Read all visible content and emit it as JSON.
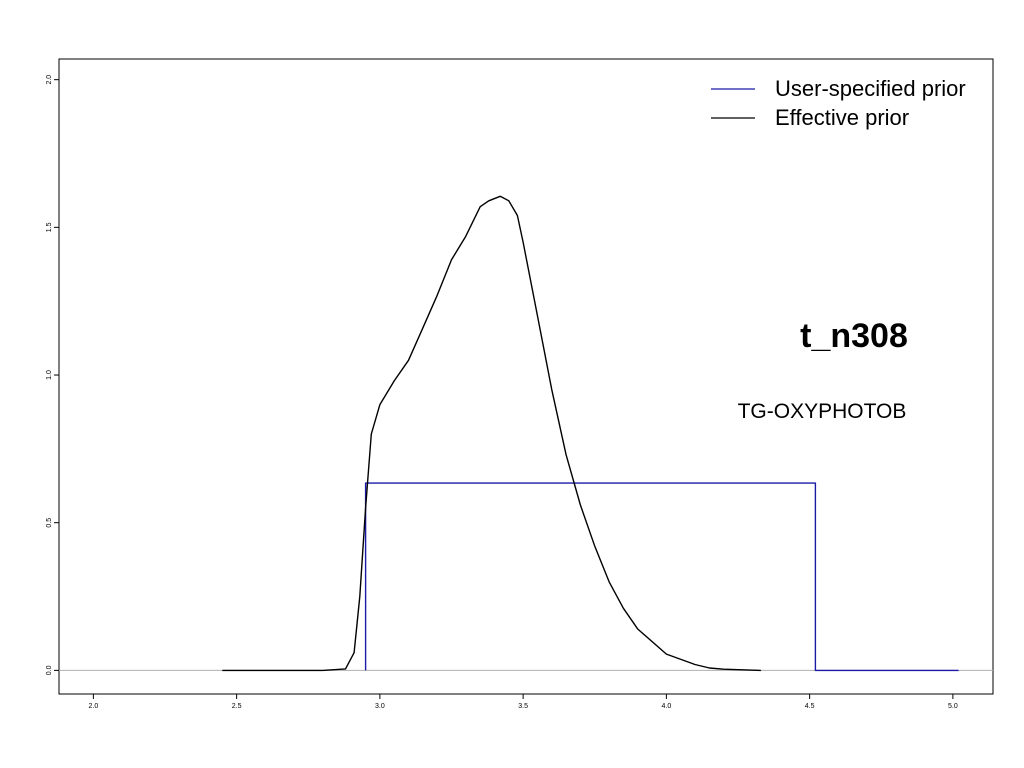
{
  "chart_data": {
    "type": "line",
    "title": "t_n308",
    "subtitle": "TG-OXYPHOTOB",
    "xlabel": "",
    "ylabel": "",
    "xlim": [
      1.88,
      5.14
    ],
    "ylim": [
      -0.08,
      2.07
    ],
    "xticks": [
      2.0,
      2.5,
      3.0,
      3.5,
      4.0,
      4.5,
      5.0
    ],
    "xtick_labels": [
      "2.0",
      "2.5",
      "3.0",
      "3.5",
      "4.0",
      "4.5",
      "5.0"
    ],
    "yticks": [
      0.0,
      0.5,
      1.0,
      1.5,
      2.0
    ],
    "ytick_labels": [
      "0.0",
      "0.5",
      "1.0",
      "1.5",
      "2.0"
    ],
    "grid": false,
    "legend_position": "top-right",
    "baseline": {
      "y": 0.0,
      "color": "#b0b0b0"
    },
    "series": [
      {
        "name": "User-specified prior",
        "color": "#1a1aa6",
        "step": true,
        "x": [
          2.95,
          2.95,
          4.52,
          4.52,
          5.02
        ],
        "y": [
          0.0,
          0.634,
          0.634,
          0.0,
          0.0
        ]
      },
      {
        "name": "Effective prior",
        "color": "#000000",
        "x": [
          2.45,
          2.8,
          2.88,
          2.91,
          2.93,
          2.95,
          2.97,
          3.0,
          3.05,
          3.1,
          3.15,
          3.2,
          3.25,
          3.3,
          3.35,
          3.38,
          3.42,
          3.45,
          3.48,
          3.5,
          3.55,
          3.6,
          3.65,
          3.7,
          3.75,
          3.8,
          3.85,
          3.9,
          4.0,
          4.1,
          4.15,
          4.2,
          4.33
        ],
        "y": [
          0.0,
          0.0,
          0.005,
          0.06,
          0.25,
          0.55,
          0.8,
          0.9,
          0.98,
          1.05,
          1.16,
          1.27,
          1.39,
          1.47,
          1.57,
          1.59,
          1.605,
          1.59,
          1.54,
          1.45,
          1.2,
          0.95,
          0.73,
          0.56,
          0.42,
          0.3,
          0.21,
          0.14,
          0.055,
          0.02,
          0.008,
          0.004,
          0.0
        ]
      }
    ]
  }
}
